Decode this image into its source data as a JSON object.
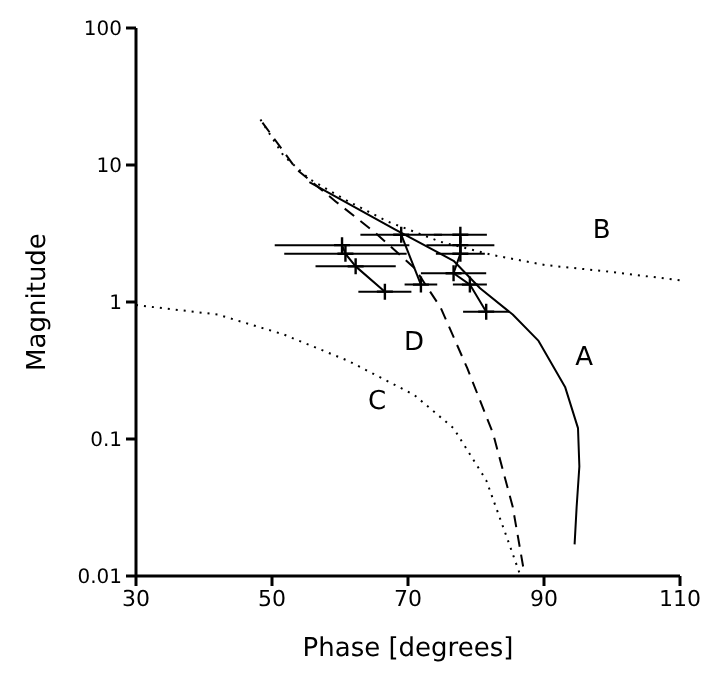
{
  "chart_data": {
    "type": "line",
    "xlabel": "Phase [degrees]",
    "ylabel": "Magnitude",
    "log": "y",
    "xlim": [
      30,
      110
    ],
    "ylim": [
      0.01,
      100
    ],
    "xticks": [
      30,
      50,
      70,
      90,
      110
    ],
    "yticks": [
      0.01,
      0.1,
      1,
      10,
      100
    ],
    "grid": false,
    "legend": false,
    "series": [
      {
        "name": "A",
        "color": "#000000",
        "line_style": "solid",
        "marker": "none",
        "x": [
          55.5,
          68,
          76.7,
          80.6,
          85.4,
          89.2,
          93.1,
          95,
          95.2,
          94.8,
          94.5
        ],
        "values": [
          7.5,
          3.4,
          2.0,
          1.26,
          0.81,
          0.52,
          0.24,
          0.12,
          0.063,
          0.032,
          0.017
        ]
      },
      {
        "name": "B",
        "color": "#000000",
        "line_style": "dotted",
        "marker": "none",
        "x": [
          48.3,
          51.7,
          55.5,
          61.3,
          67.1,
          74.8,
          82.5,
          90.2,
          99.8,
          110
        ],
        "values": [
          21.5,
          11.7,
          7.9,
          5.4,
          3.85,
          2.75,
          2.2,
          1.86,
          1.66,
          1.44
        ]
      },
      {
        "name": "C",
        "color": "#000000",
        "line_style": "dotted",
        "marker": "none",
        "x": [
          30,
          42,
          51.7,
          61.3,
          70.9,
          76.7,
          81.5,
          84.4,
          86.4
        ],
        "values": [
          0.95,
          0.81,
          0.58,
          0.37,
          0.21,
          0.12,
          0.05,
          0.02,
          0.0105
        ]
      },
      {
        "name": "D",
        "color": "#000000",
        "line_style": "dashed",
        "marker": "none",
        "x": [
          48.6,
          53.6,
          59.4,
          65.2,
          71,
          74.8,
          78.7,
          82.5,
          85.4,
          87.1
        ],
        "values": [
          20.4,
          9.3,
          5.4,
          3.2,
          1.76,
          0.91,
          0.33,
          0.11,
          0.032,
          0.0105
        ]
      },
      {
        "color": "#000000",
        "line_style": "solid",
        "marker": "cross",
        "x": [
          60.3,
          60.8,
          62.3,
          66.6
        ],
        "values": [
          2.6,
          2.25,
          1.82,
          1.19
        ],
        "xerrors": [
          9.9,
          9,
          5.9,
          3.9
        ]
      },
      {
        "color": "#000000",
        "line_style": "solid",
        "marker": "cross",
        "x": [
          69,
          71.9
        ],
        "values": [
          3.1,
          1.34
        ],
        "xerrors": [
          6,
          2.4
        ]
      },
      {
        "color": "#000000",
        "line_style": "solid",
        "marker": "cross",
        "x": [
          77.7,
          77.7,
          77.7,
          76.7,
          79.1,
          81.5
        ],
        "values": [
          3.1,
          2.6,
          2.25,
          1.62,
          1.34,
          0.85
        ],
        "xerrors": [
          3.9,
          5,
          3.6,
          4.8,
          2.5,
          3.4
        ]
      }
    ]
  }
}
